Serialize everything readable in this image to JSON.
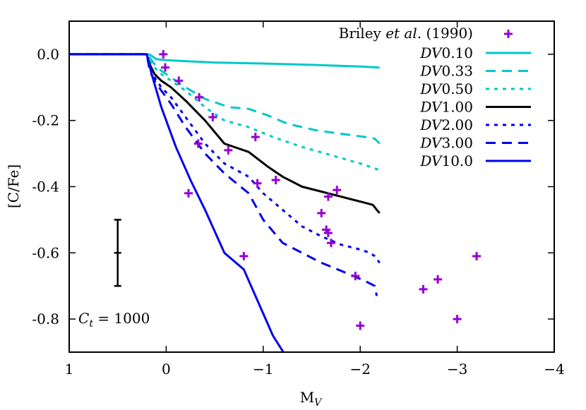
{
  "chart_data": {
    "type": "line",
    "xlabel_main": "M",
    "xlabel_sub": "V",
    "ylabel": "[C/Fe]",
    "xlim": [
      1,
      -4
    ],
    "ylim": [
      -0.9,
      0.1
    ],
    "x_ticks": [
      {
        "value": 1,
        "label": "1"
      },
      {
        "value": 0,
        "label": "0"
      },
      {
        "value": -1,
        "label": "−1"
      },
      {
        "value": -2,
        "label": "−2"
      },
      {
        "value": -3,
        "label": "−3"
      },
      {
        "value": -4,
        "label": "−4"
      }
    ],
    "y_ticks": [
      {
        "value": 0.0,
        "label": "0.0"
      },
      {
        "value": -0.2,
        "label": "-0.2"
      },
      {
        "value": -0.4,
        "label": "-0.4"
      },
      {
        "value": -0.6,
        "label": "-0.6"
      },
      {
        "value": -0.8,
        "label": "-0.8"
      }
    ],
    "annotation": {
      "var": "C",
      "sub": "t",
      "rest": " = 1000"
    },
    "error_bar": {
      "x": 0.5,
      "y": -0.6,
      "yerr": 0.1
    },
    "scatter": {
      "name_pre": "Briley ",
      "name_italic": "et al.",
      "name_post": " (1990)",
      "color": "#9400d3",
      "points": [
        [
          0.03,
          0.0
        ],
        [
          0.01,
          -0.04
        ],
        [
          -0.13,
          -0.08
        ],
        [
          -0.34,
          -0.13
        ],
        [
          -0.48,
          -0.19
        ],
        [
          -0.33,
          -0.27
        ],
        [
          -0.64,
          -0.29
        ],
        [
          -0.92,
          -0.25
        ],
        [
          -0.94,
          -0.39
        ],
        [
          -1.13,
          -0.38
        ],
        [
          -0.23,
          -0.42
        ],
        [
          -0.8,
          -0.61
        ],
        [
          -1.6,
          -0.48
        ],
        [
          -1.65,
          -0.53
        ],
        [
          -1.67,
          -0.54
        ],
        [
          -1.67,
          -0.43
        ],
        [
          -1.7,
          -0.57
        ],
        [
          -1.76,
          -0.41
        ],
        [
          -1.95,
          -0.67
        ],
        [
          -2.0,
          -0.82
        ],
        [
          -2.65,
          -0.71
        ],
        [
          -2.8,
          -0.68
        ],
        [
          -3.0,
          -0.8
        ],
        [
          -3.2,
          -0.61
        ]
      ]
    },
    "series": [
      {
        "var": "DV",
        "num": "0.10",
        "color": "#00c8c8",
        "dash": "solid",
        "points": [
          [
            1,
            0.0
          ],
          [
            0.2,
            0.0
          ],
          [
            0.17,
            -0.001
          ],
          [
            0.1,
            -0.015
          ],
          [
            0.0,
            -0.018
          ],
          [
            -0.5,
            -0.025
          ],
          [
            -1.0,
            -0.028
          ],
          [
            -1.5,
            -0.032
          ],
          [
            -2.0,
            -0.037
          ],
          [
            -2.2,
            -0.04
          ]
        ]
      },
      {
        "var": "DV",
        "num": "0.33",
        "color": "#00c8c8",
        "dash": "long",
        "points": [
          [
            1,
            0.0
          ],
          [
            0.2,
            0.0
          ],
          [
            0.17,
            -0.01
          ],
          [
            0.12,
            -0.03
          ],
          [
            0.05,
            -0.05
          ],
          [
            -0.05,
            -0.07
          ],
          [
            -0.2,
            -0.1
          ],
          [
            -0.4,
            -0.135
          ],
          [
            -0.65,
            -0.16
          ],
          [
            -0.85,
            -0.165
          ],
          [
            -1.05,
            -0.185
          ],
          [
            -1.25,
            -0.21
          ],
          [
            -1.55,
            -0.23
          ],
          [
            -1.8,
            -0.24
          ],
          [
            -2.05,
            -0.25
          ],
          [
            -2.15,
            -0.255
          ],
          [
            -2.2,
            -0.27
          ]
        ]
      },
      {
        "var": "DV",
        "num": "0.50",
        "color": "#00c8c8",
        "dash": "short",
        "points": [
          [
            1,
            0.0
          ],
          [
            0.2,
            0.0
          ],
          [
            0.17,
            -0.02
          ],
          [
            0.12,
            -0.04
          ],
          [
            0.05,
            -0.06
          ],
          [
            -0.05,
            -0.08
          ],
          [
            -0.2,
            -0.11
          ],
          [
            -0.4,
            -0.16
          ],
          [
            -0.6,
            -0.2
          ],
          [
            -0.85,
            -0.22
          ],
          [
            -1.1,
            -0.25
          ],
          [
            -1.4,
            -0.28
          ],
          [
            -1.7,
            -0.305
          ],
          [
            -2.0,
            -0.33
          ],
          [
            -2.2,
            -0.35
          ]
        ]
      },
      {
        "var": "DV",
        "num": "1.00",
        "color": "#000000",
        "dash": "solid",
        "points": [
          [
            1,
            0.0
          ],
          [
            0.2,
            0.0
          ],
          [
            0.17,
            -0.03
          ],
          [
            0.12,
            -0.06
          ],
          [
            0.05,
            -0.08
          ],
          [
            -0.05,
            -0.1
          ],
          [
            -0.2,
            -0.14
          ],
          [
            -0.4,
            -0.2
          ],
          [
            -0.6,
            -0.27
          ],
          [
            -0.85,
            -0.295
          ],
          [
            -1.05,
            -0.34
          ],
          [
            -1.2,
            -0.37
          ],
          [
            -1.4,
            -0.4
          ],
          [
            -1.6,
            -0.415
          ],
          [
            -1.8,
            -0.43
          ],
          [
            -2.0,
            -0.445
          ],
          [
            -2.13,
            -0.455
          ],
          [
            -2.17,
            -0.47
          ],
          [
            -2.2,
            -0.48
          ]
        ]
      },
      {
        "var": "DV",
        "num": "2.00",
        "color": "#0000ee",
        "dash": "short",
        "points": [
          [
            1,
            0.0
          ],
          [
            0.2,
            0.0
          ],
          [
            0.17,
            -0.04
          ],
          [
            0.12,
            -0.07
          ],
          [
            0.05,
            -0.1
          ],
          [
            -0.05,
            -0.13
          ],
          [
            -0.2,
            -0.19
          ],
          [
            -0.4,
            -0.27
          ],
          [
            -0.6,
            -0.33
          ],
          [
            -0.85,
            -0.37
          ],
          [
            -1.0,
            -0.42
          ],
          [
            -1.2,
            -0.47
          ],
          [
            -1.4,
            -0.52
          ],
          [
            -1.6,
            -0.55
          ],
          [
            -1.8,
            -0.575
          ],
          [
            -2.0,
            -0.59
          ],
          [
            -2.1,
            -0.6
          ],
          [
            -2.15,
            -0.61
          ],
          [
            -2.2,
            -0.63
          ]
        ]
      },
      {
        "var": "DV",
        "num": "3.00",
        "color": "#0000ee",
        "dash": "long",
        "points": [
          [
            1,
            0.0
          ],
          [
            0.2,
            0.0
          ],
          [
            0.17,
            -0.05
          ],
          [
            0.12,
            -0.08
          ],
          [
            0.05,
            -0.11
          ],
          [
            -0.05,
            -0.15
          ],
          [
            -0.2,
            -0.22
          ],
          [
            -0.4,
            -0.3
          ],
          [
            -0.6,
            -0.36
          ],
          [
            -0.85,
            -0.42
          ],
          [
            -1.0,
            -0.5
          ],
          [
            -1.2,
            -0.57
          ],
          [
            -1.4,
            -0.6
          ],
          [
            -1.6,
            -0.63
          ],
          [
            -1.85,
            -0.66
          ],
          [
            -2.05,
            -0.685
          ],
          [
            -2.15,
            -0.7
          ],
          [
            -2.17,
            -0.73
          ]
        ]
      },
      {
        "var": "DV",
        "num": "10.0",
        "color": "#0000ee",
        "dash": "solid",
        "points": [
          [
            1,
            0.0
          ],
          [
            0.2,
            0.0
          ],
          [
            0.15,
            -0.06
          ],
          [
            0.05,
            -0.16
          ],
          [
            -0.1,
            -0.28
          ],
          [
            -0.25,
            -0.38
          ],
          [
            -0.4,
            -0.47
          ],
          [
            -0.6,
            -0.6
          ],
          [
            -0.8,
            -0.65
          ],
          [
            -0.95,
            -0.75
          ],
          [
            -1.1,
            -0.85
          ],
          [
            -1.25,
            -0.92
          ]
        ]
      }
    ]
  }
}
